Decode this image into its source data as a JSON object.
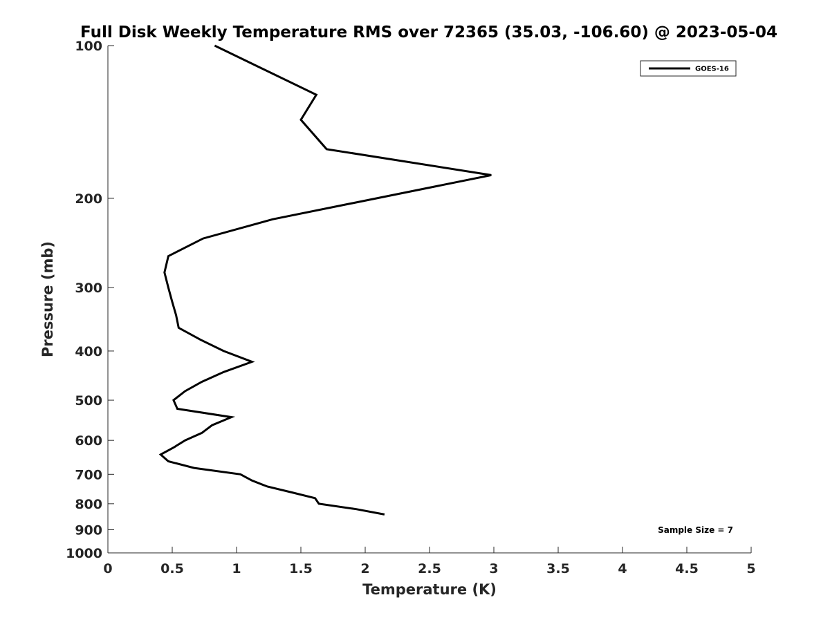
{
  "chart_data": {
    "type": "line",
    "title": "Full Disk Weekly Temperature RMS over 72365 (35.03, -106.60) @ 2023-05-04",
    "xlabel": "Temperature (K)",
    "ylabel": "Pressure (mb)",
    "xlim": [
      0,
      5
    ],
    "ylim": [
      100,
      1000
    ],
    "y_scale": "log",
    "y_reversed": true,
    "x_ticks": [
      "0",
      "0.5",
      "1",
      "1.5",
      "2",
      "2.5",
      "3",
      "3.5",
      "4",
      "4.5",
      "5"
    ],
    "y_ticks": [
      "100",
      "200",
      "300",
      "400",
      "500",
      "600",
      "700",
      "800",
      "900",
      "1000"
    ],
    "grid": false,
    "legend_position": "top-right",
    "annotation": "Sample Size = 7",
    "series": [
      {
        "name": "GOES-16",
        "color": "#000000",
        "points": [
          {
            "x": 0.83,
            "p": 100
          },
          {
            "x": 1.62,
            "p": 125
          },
          {
            "x": 1.5,
            "p": 140
          },
          {
            "x": 1.7,
            "p": 160
          },
          {
            "x": 2.98,
            "p": 180
          },
          {
            "x": 1.28,
            "p": 220
          },
          {
            "x": 0.74,
            "p": 240
          },
          {
            "x": 0.47,
            "p": 260
          },
          {
            "x": 0.44,
            "p": 280
          },
          {
            "x": 0.47,
            "p": 300
          },
          {
            "x": 0.5,
            "p": 320
          },
          {
            "x": 0.53,
            "p": 340
          },
          {
            "x": 0.55,
            "p": 360
          },
          {
            "x": 0.72,
            "p": 380
          },
          {
            "x": 0.9,
            "p": 400
          },
          {
            "x": 1.12,
            "p": 420
          },
          {
            "x": 0.9,
            "p": 440
          },
          {
            "x": 0.73,
            "p": 460
          },
          {
            "x": 0.6,
            "p": 480
          },
          {
            "x": 0.51,
            "p": 500
          },
          {
            "x": 0.54,
            "p": 520
          },
          {
            "x": 0.96,
            "p": 540
          },
          {
            "x": 0.81,
            "p": 560
          },
          {
            "x": 0.73,
            "p": 580
          },
          {
            "x": 0.6,
            "p": 600
          },
          {
            "x": 0.51,
            "p": 620
          },
          {
            "x": 0.41,
            "p": 640
          },
          {
            "x": 0.47,
            "p": 660
          },
          {
            "x": 0.67,
            "p": 680
          },
          {
            "x": 1.03,
            "p": 700
          },
          {
            "x": 1.12,
            "p": 720
          },
          {
            "x": 1.24,
            "p": 740
          },
          {
            "x": 1.43,
            "p": 760
          },
          {
            "x": 1.61,
            "p": 780
          },
          {
            "x": 1.64,
            "p": 800
          },
          {
            "x": 1.93,
            "p": 820
          },
          {
            "x": 2.15,
            "p": 840
          }
        ]
      }
    ]
  }
}
